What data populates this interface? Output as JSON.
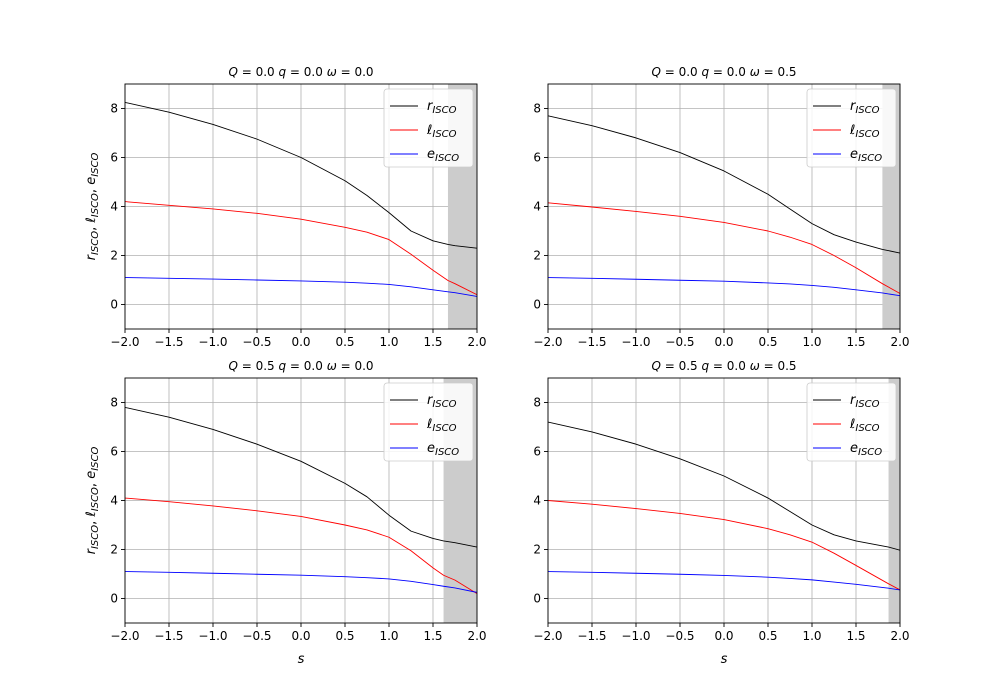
{
  "chart_data": [
    {
      "type": "line",
      "title": {
        "Q": "0.0",
        "q": "0.0",
        "omega": "0.0"
      },
      "xlabel": "",
      "ylabel": "r_ISCO, ℓ_ISCO, e_ISCO",
      "xlim": [
        -2.0,
        2.0
      ],
      "ylim": [
        -1.0,
        9.0
      ],
      "xticks": [
        "−2.0",
        "−1.5",
        "−1.0",
        "−0.5",
        "0.0",
        "0.5",
        "1.0",
        "1.5",
        "2.0"
      ],
      "yticks": [
        "0",
        "2",
        "4",
        "6",
        "8"
      ],
      "grid": true,
      "legend_position": "top-right",
      "shaded_region": [
        1.67,
        2.0
      ],
      "x": [
        -2.0,
        -1.5,
        -1.0,
        -0.5,
        0.0,
        0.5,
        0.75,
        1.0,
        1.25,
        1.5,
        1.67,
        1.75,
        2.0
      ],
      "series": [
        {
          "name": "r",
          "color": "#000000",
          "values": [
            8.25,
            7.85,
            7.35,
            6.75,
            6.0,
            5.05,
            4.45,
            3.75,
            3.0,
            2.6,
            2.45,
            2.4,
            2.3
          ]
        },
        {
          "name": "ℓ",
          "color": "#ff0000",
          "values": [
            4.2,
            4.05,
            3.9,
            3.72,
            3.48,
            3.15,
            2.95,
            2.65,
            2.05,
            1.4,
            0.98,
            0.85,
            0.4
          ]
        },
        {
          "name": "e",
          "color": "#0000ff",
          "values": [
            1.1,
            1.07,
            1.04,
            1.0,
            0.96,
            0.91,
            0.87,
            0.82,
            0.72,
            0.6,
            0.52,
            0.48,
            0.33
          ]
        }
      ]
    },
    {
      "type": "line",
      "title": {
        "Q": "0.0",
        "q": "0.0",
        "omega": "0.5"
      },
      "xlabel": "",
      "ylabel": "",
      "xlim": [
        -2.0,
        2.0
      ],
      "ylim": [
        -1.0,
        9.0
      ],
      "xticks": [
        "−2.0",
        "−1.5",
        "−1.0",
        "−0.5",
        "0.0",
        "0.5",
        "1.0",
        "1.5",
        "2.0"
      ],
      "yticks": [
        "0",
        "2",
        "4",
        "6",
        "8"
      ],
      "grid": true,
      "legend_position": "top-right",
      "shaded_region": [
        1.8,
        2.0
      ],
      "x": [
        -2.0,
        -1.5,
        -1.0,
        -0.5,
        0.0,
        0.5,
        0.75,
        1.0,
        1.25,
        1.5,
        1.8,
        2.0
      ],
      "series": [
        {
          "name": "r",
          "color": "#000000",
          "values": [
            7.7,
            7.3,
            6.8,
            6.2,
            5.45,
            4.5,
            3.9,
            3.3,
            2.85,
            2.55,
            2.25,
            2.1
          ]
        },
        {
          "name": "ℓ",
          "color": "#ff0000",
          "values": [
            4.15,
            3.98,
            3.8,
            3.6,
            3.35,
            3.0,
            2.75,
            2.45,
            2.0,
            1.5,
            0.85,
            0.45
          ]
        },
        {
          "name": "e",
          "color": "#0000ff",
          "values": [
            1.1,
            1.07,
            1.03,
            0.99,
            0.95,
            0.88,
            0.84,
            0.78,
            0.7,
            0.6,
            0.47,
            0.36
          ]
        }
      ]
    },
    {
      "type": "line",
      "title": {
        "Q": "0.5",
        "q": "0.0",
        "omega": "0.0"
      },
      "xlabel": "s",
      "ylabel": "r_ISCO, ℓ_ISCO, e_ISCO",
      "xlim": [
        -2.0,
        2.0
      ],
      "ylim": [
        -1.0,
        9.0
      ],
      "xticks": [
        "−2.0",
        "−1.5",
        "−1.0",
        "−0.5",
        "0.0",
        "0.5",
        "1.0",
        "1.5",
        "2.0"
      ],
      "yticks": [
        "0",
        "2",
        "4",
        "6",
        "8"
      ],
      "grid": true,
      "legend_position": "top-right",
      "shaded_region": [
        1.62,
        2.0
      ],
      "x": [
        -2.0,
        -1.5,
        -1.0,
        -0.5,
        0.0,
        0.5,
        0.75,
        1.0,
        1.25,
        1.5,
        1.62,
        1.75,
        2.0
      ],
      "series": [
        {
          "name": "r",
          "color": "#000000",
          "values": [
            7.8,
            7.4,
            6.9,
            6.3,
            5.6,
            4.7,
            4.15,
            3.4,
            2.75,
            2.45,
            2.35,
            2.28,
            2.1
          ]
        },
        {
          "name": "ℓ",
          "color": "#ff0000",
          "values": [
            4.1,
            3.95,
            3.78,
            3.58,
            3.35,
            3.0,
            2.8,
            2.5,
            1.95,
            1.25,
            0.95,
            0.75,
            0.2
          ]
        },
        {
          "name": "e",
          "color": "#0000ff",
          "values": [
            1.1,
            1.07,
            1.03,
            0.99,
            0.95,
            0.89,
            0.85,
            0.8,
            0.7,
            0.57,
            0.5,
            0.43,
            0.25
          ]
        }
      ]
    },
    {
      "type": "line",
      "title": {
        "Q": "0.5",
        "q": "0.0",
        "omega": "0.5"
      },
      "xlabel": "s",
      "ylabel": "",
      "xlim": [
        -2.0,
        2.0
      ],
      "ylim": [
        -1.0,
        9.0
      ],
      "xticks": [
        "−2.0",
        "−1.5",
        "−1.0",
        "−0.5",
        "0.0",
        "0.5",
        "1.0",
        "1.5",
        "2.0"
      ],
      "yticks": [
        "0",
        "2",
        "4",
        "6",
        "8"
      ],
      "grid": true,
      "legend_position": "top-right",
      "shaded_region": [
        1.87,
        2.0
      ],
      "x": [
        -2.0,
        -1.5,
        -1.0,
        -0.5,
        0.0,
        0.5,
        0.75,
        1.0,
        1.25,
        1.5,
        1.87,
        2.0
      ],
      "series": [
        {
          "name": "r",
          "color": "#000000",
          "values": [
            7.2,
            6.8,
            6.3,
            5.7,
            5.0,
            4.1,
            3.55,
            3.0,
            2.6,
            2.35,
            2.1,
            1.97
          ]
        },
        {
          "name": "ℓ",
          "color": "#ff0000",
          "values": [
            4.0,
            3.85,
            3.67,
            3.47,
            3.22,
            2.85,
            2.6,
            2.3,
            1.85,
            1.35,
            0.6,
            0.35
          ]
        },
        {
          "name": "e",
          "color": "#0000ff",
          "values": [
            1.1,
            1.07,
            1.03,
            0.99,
            0.94,
            0.87,
            0.82,
            0.76,
            0.67,
            0.58,
            0.42,
            0.35
          ]
        }
      ]
    }
  ],
  "colors": {
    "background": "#ffffff",
    "grid": "#b0b0b0",
    "shaded": "#cccccc",
    "axis": "#000000"
  }
}
